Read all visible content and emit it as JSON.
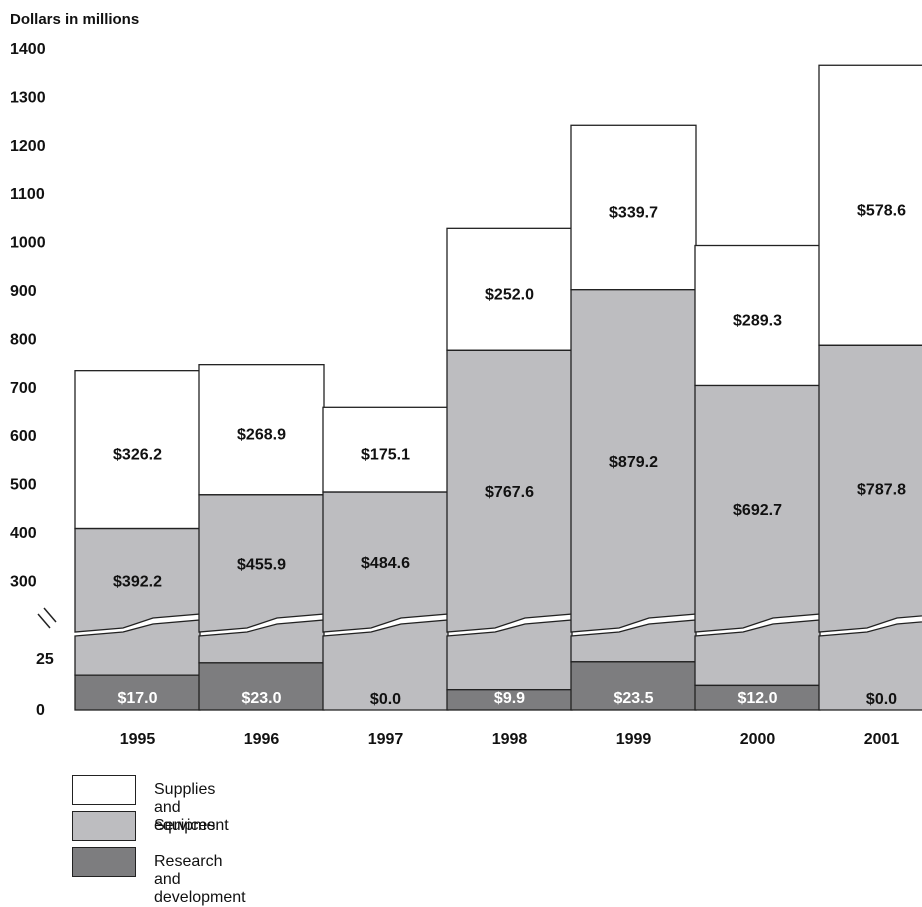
{
  "chart_data": {
    "type": "bar",
    "stacked": true,
    "axis_break": true,
    "ylabel": "Dollars in millions",
    "yticks_lower": [
      0,
      25
    ],
    "yticks_upper": [
      300,
      400,
      500,
      600,
      700,
      800,
      900,
      1000,
      1100,
      1200,
      1300,
      1400
    ],
    "ylim": [
      0,
      1400
    ],
    "grid": false,
    "legend_position": "bottom-left",
    "categories": [
      "1995",
      "1996",
      "1997",
      "1998",
      "1999",
      "2000",
      "2001"
    ],
    "series": [
      {
        "name": "Research and development",
        "color": "#7d7d7f",
        "values": [
          17.0,
          23.0,
          0.0,
          9.9,
          23.5,
          12.0,
          0.0
        ],
        "labels": [
          "$17.0",
          "$23.0",
          "$0.0",
          "$9.9",
          "$23.5",
          "$12.0",
          "$0.0"
        ]
      },
      {
        "name": "Services",
        "color": "#bdbdc0",
        "values": [
          392.2,
          455.9,
          484.6,
          767.6,
          879.2,
          692.7,
          787.8
        ],
        "labels": [
          "$392.2",
          "$455.9",
          "$484.6",
          "$767.6",
          "$879.2",
          "$692.7",
          "$787.8"
        ]
      },
      {
        "name": "Supplies and equipment",
        "color": "#ffffff",
        "values": [
          326.2,
          268.9,
          175.1,
          252.0,
          339.7,
          289.3,
          578.6
        ],
        "labels": [
          "$326.2",
          "$268.9",
          "$175.1",
          "$252.0",
          "$339.7",
          "$289.3",
          "$578.6"
        ]
      }
    ]
  },
  "legend": {
    "items": [
      {
        "label": "Supplies and equipment",
        "color": "#ffffff"
      },
      {
        "label": "Services",
        "color": "#bdbdc0"
      },
      {
        "label": "Research and development",
        "color": "#7d7d7f"
      }
    ]
  }
}
